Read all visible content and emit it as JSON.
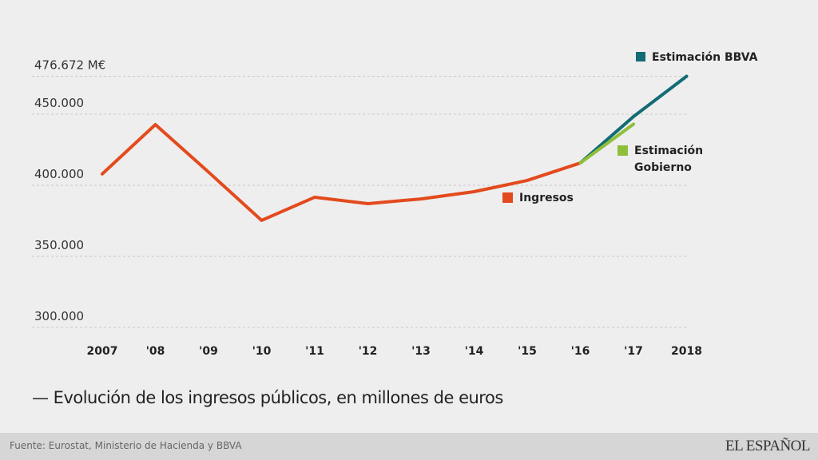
{
  "chart_data": {
    "type": "line",
    "title": "— Evolución de los ingresos públicos, en millones de euros",
    "xlabel": "",
    "ylabel": "",
    "x": [
      "2007",
      "'08",
      "'09",
      "'10",
      "'11",
      "'12",
      "'13",
      "'14",
      "'15",
      "'16",
      "'17",
      "2018"
    ],
    "ylim": [
      300000,
      476672
    ],
    "yticks": [
      {
        "value": 476672,
        "label": "476.672 M€"
      },
      {
        "value": 450000,
        "label": "450.000"
      },
      {
        "value": 400000,
        "label": "400.000"
      },
      {
        "value": 350000,
        "label": "350.000"
      },
      {
        "value": 300000,
        "label": "300.000"
      }
    ],
    "grid": true,
    "series": [
      {
        "name": "Ingresos",
        "color": "#e34a1d",
        "x_start": 0,
        "values": [
          408000,
          442700,
          409300,
          375300,
          391600,
          387100,
          390400,
          395500,
          403400,
          415700
        ]
      },
      {
        "name": "Estimación Gobierno",
        "color": "#8fbf3a",
        "x_start": 9,
        "values": [
          415700,
          443000
        ]
      },
      {
        "name": "Estimación BBVA",
        "color": "#136b75",
        "x_start": 9,
        "values": [
          415700,
          448300,
          476672
        ]
      }
    ],
    "legend": [
      {
        "label": "Estimación BBVA",
        "color": "#136b75",
        "position": "top-right"
      },
      {
        "label_lines": [
          "Estimación",
          "Gobierno"
        ],
        "color": "#8fbf3a",
        "position": "right"
      },
      {
        "label": "Ingresos",
        "color": "#e34a1d",
        "position": "center-right"
      }
    ]
  },
  "footer": {
    "source": "Fuente: Eurostat, Ministerio de Hacienda y BBVA",
    "brand": "EL ESPAÑOL"
  }
}
